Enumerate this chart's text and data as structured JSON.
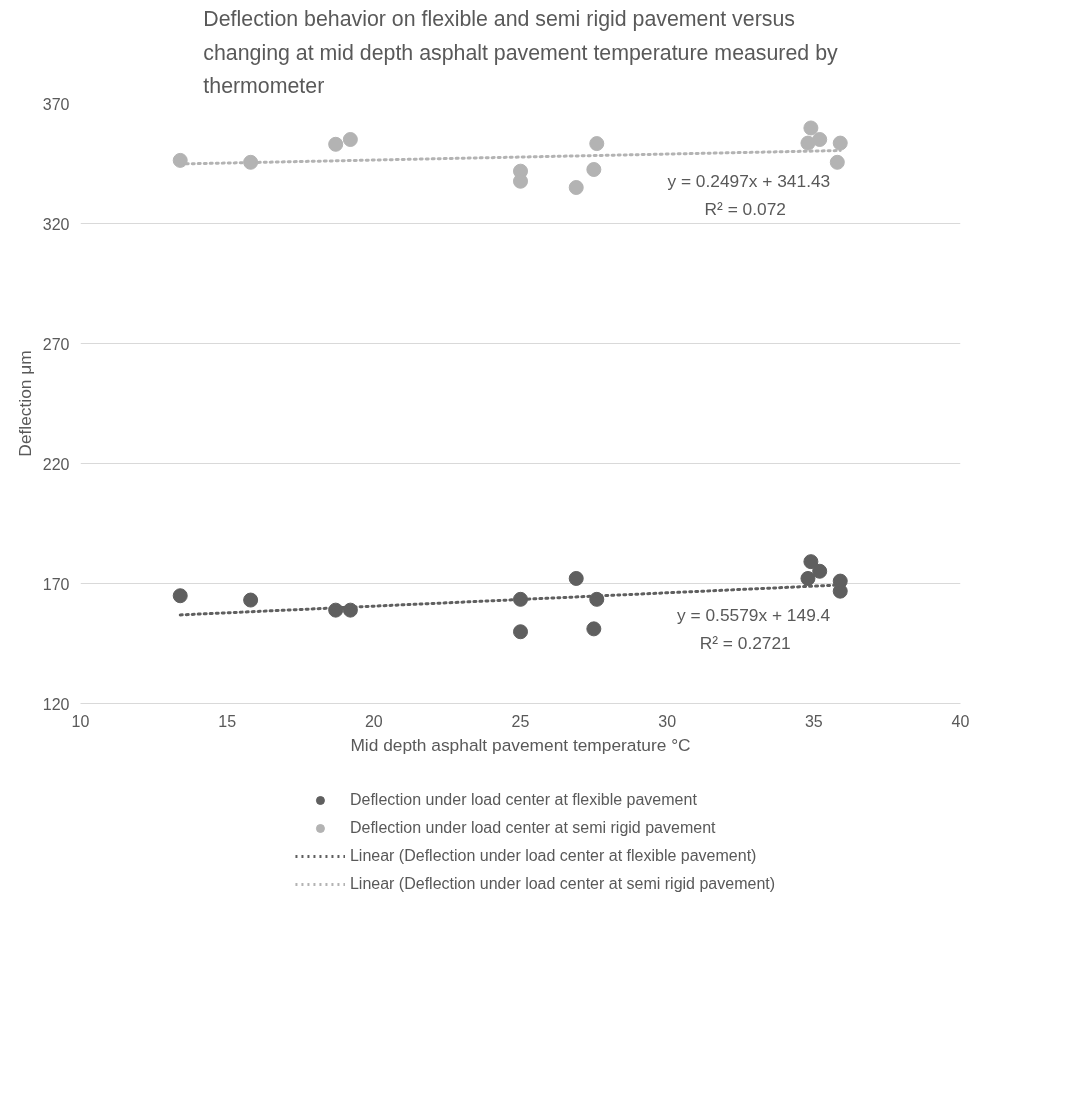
{
  "chart_data": {
    "type": "scatter",
    "title": "Deflection behavior on flexible and semi rigid pavement versus changing at mid depth asphalt pavement temperature measured by thermometer",
    "xlabel": "Mid depth asphalt pavement temperature °C",
    "ylabel": "Deflection μm",
    "xlim": [
      10,
      40
    ],
    "xticks": [
      10,
      15,
      20,
      25,
      30,
      35,
      40
    ],
    "ylim": [
      120,
      370
    ],
    "yticks": [
      120,
      170,
      220,
      270,
      320,
      370
    ],
    "grid": "y",
    "legend": "bottom",
    "marker": "circle",
    "series": [
      {
        "name": "Deflection under load center at flexible pavement",
        "color": "#5f5f5f",
        "x": [
          13.4,
          15.8,
          18.7,
          19.2,
          25.0,
          25.0,
          26.9,
          27.6,
          27.5,
          34.9,
          34.8,
          35.2,
          35.9,
          35.9
        ],
        "values": [
          164.9,
          163.1,
          158.9,
          158.9,
          163.4,
          149.9,
          172.1,
          163.4,
          151.1,
          179.1,
          172.1,
          175.1,
          171.0,
          166.8
        ]
      },
      {
        "name": "Deflection under load center at semi rigid pavement",
        "color": "#b3b3b3",
        "x": [
          13.4,
          15.8,
          18.7,
          19.2,
          25.0,
          25.0,
          26.9,
          27.5,
          27.6,
          34.9,
          34.8,
          35.2,
          35.9,
          35.8
        ],
        "values": [
          346.3,
          345.5,
          353.0,
          355.0,
          341.8,
          337.6,
          335.0,
          342.5,
          353.3,
          359.8,
          353.5,
          355.0,
          353.5,
          345.5
        ]
      },
      {
        "name": "Linear (Deflection under load center at flexible pavement)",
        "type": "line",
        "marker": "none",
        "line_style": "dotted",
        "color": "#5f5f5f",
        "x": [
          13.4,
          35.9
        ],
        "values": [
          156.9,
          169.4
        ]
      },
      {
        "name": "Linear (Deflection under load center at semi rigid pavement)",
        "type": "line",
        "marker": "none",
        "line_style": "dotted",
        "color": "#b3b3b3",
        "x": [
          13.4,
          35.9
        ],
        "values": [
          344.8,
          350.4
        ]
      }
    ],
    "annotations": [
      "y = 0.2497x + 341.43",
      "R² = 0.072",
      "y = 0.5579x + 149.4",
      "R² = 0.2721"
    ]
  }
}
